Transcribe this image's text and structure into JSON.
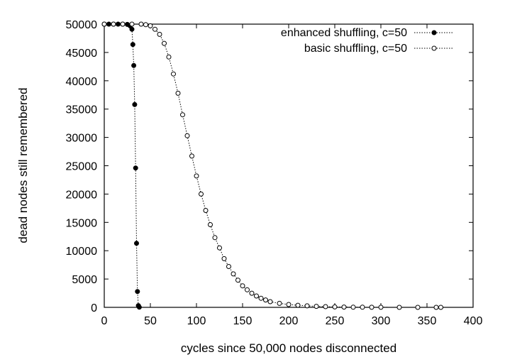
{
  "chart_data": {
    "type": "scatter",
    "title": "",
    "xlabel": "cycles since 50,000 nodes disconnected",
    "ylabel": "dead nodes still remembered",
    "xlim": [
      0,
      400
    ],
    "ylim": [
      0,
      50000
    ],
    "xticks": [
      "0",
      "50",
      "100",
      "150",
      "200",
      "250",
      "300",
      "350",
      "400"
    ],
    "yticks": [
      "0",
      "5000",
      "10000",
      "15000",
      "20000",
      "25000",
      "30000",
      "35000",
      "40000",
      "45000",
      "50000"
    ],
    "grid": false,
    "legend_position": "top-right",
    "series": [
      {
        "name": "enhanced shuffling, c=50",
        "marker": "filled-circle",
        "line": "dotted",
        "color": "#000000",
        "x": [
          0,
          5,
          10,
          15,
          20,
          25,
          28,
          30,
          31,
          32,
          33,
          34,
          35,
          36,
          37,
          38
        ],
        "y": [
          50000,
          50000,
          50000,
          50000,
          50000,
          49950,
          49700,
          49100,
          46400,
          42700,
          35800,
          24600,
          11300,
          2800,
          300,
          20
        ]
      },
      {
        "name": "basic shuffling, c=50",
        "marker": "open-circle",
        "line": "dotted",
        "color": "#000000",
        "x": [
          0,
          10,
          20,
          30,
          40,
          45,
          50,
          55,
          60,
          65,
          70,
          75,
          80,
          85,
          90,
          95,
          100,
          105,
          110,
          115,
          120,
          125,
          130,
          135,
          140,
          145,
          150,
          155,
          160,
          165,
          170,
          175,
          180,
          190,
          200,
          210,
          220,
          230,
          240,
          250,
          260,
          270,
          280,
          290,
          300,
          320,
          340,
          360,
          365
        ],
        "y": [
          50000,
          50000,
          50000,
          50000,
          50000,
          49900,
          49700,
          49100,
          48200,
          46600,
          44200,
          41200,
          37800,
          34000,
          30300,
          26700,
          23200,
          20000,
          17100,
          14600,
          12300,
          10500,
          8600,
          7200,
          5900,
          4800,
          3800,
          3100,
          2500,
          2000,
          1600,
          1300,
          1000,
          700,
          500,
          360,
          260,
          180,
          120,
          80,
          50,
          30,
          20,
          12,
          8,
          4,
          2,
          1,
          0
        ]
      }
    ]
  }
}
